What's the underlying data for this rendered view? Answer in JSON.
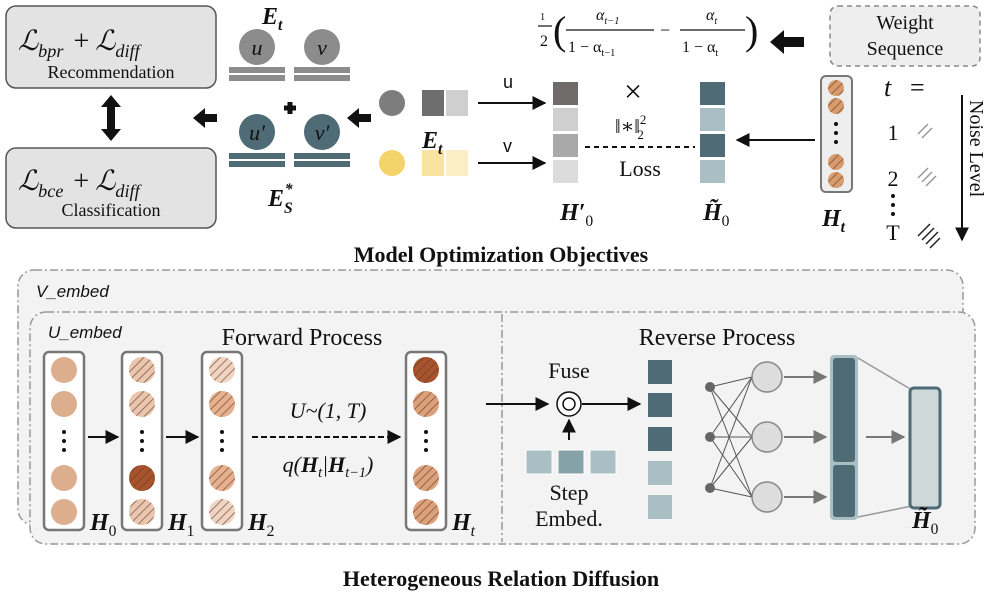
{
  "objectives": {
    "recommendation": {
      "loss_a": {
        "symbol": "ℒ",
        "subscript": "bpr"
      },
      "plus": "+",
      "loss_b": {
        "symbol": "ℒ",
        "subscript": "diff"
      },
      "label": "Recommendation"
    },
    "classification": {
      "loss_a": {
        "symbol": "ℒ",
        "subscript": "bce"
      },
      "plus": "+",
      "loss_b": {
        "symbol": "ℒ",
        "subscript": "diff"
      },
      "label": "Classification"
    },
    "embeddings": {
      "e_t": {
        "symbol": "E",
        "subscript": "t"
      },
      "u": "u",
      "v": "v",
      "u_prime": "u′",
      "v_prime": "v′",
      "e_s": {
        "symbol": "E",
        "subscript": "S",
        "superscript": "*"
      }
    },
    "inputs": {
      "e_t": {
        "symbol": "E",
        "subscript": "t"
      },
      "u_arrow": "u",
      "v_arrow": "v"
    },
    "loss": {
      "times": "×",
      "norm": "‖∗‖",
      "norm_superscript": "2",
      "norm_subscript": "2",
      "label": "Loss"
    },
    "h_prime_0": {
      "symbol": "H′",
      "subscript": "0"
    },
    "h_tilde_0": {
      "symbol": "H̃",
      "subscript": "0"
    },
    "weight_formula": {
      "half_numerator": "1",
      "half_denominator": "2",
      "open": "(",
      "close": ")",
      "minus": "−",
      "term_a": {
        "numerator": {
          "symbol": "α",
          "subscript": "t−1"
        },
        "denominator": {
          "symbol": "1 − α",
          "subscript": "t−1"
        }
      },
      "term_b": {
        "numerator": {
          "symbol": "α",
          "subscript": "t"
        },
        "denominator": {
          "symbol": "1 − α",
          "subscript": "t"
        }
      }
    },
    "weight_sequence": [
      "Weight",
      "Sequence"
    ],
    "noise": {
      "t": "t",
      "equals": "=",
      "steps": [
        "1",
        "2",
        "T"
      ],
      "label": "Noise Level"
    },
    "h_t": {
      "symbol": "H",
      "subscript": "t"
    },
    "title": "Model Optimization Objectives"
  },
  "diffusion": {
    "v_embed": "V_embed",
    "u_embed": "U_embed",
    "forward": {
      "title": "Forward Process",
      "columns": [
        {
          "symbol": "H",
          "subscript": "0"
        },
        {
          "symbol": "H",
          "subscript": "1"
        },
        {
          "symbol": "H",
          "subscript": "2"
        },
        {
          "symbol": "H",
          "subscript": "t"
        }
      ],
      "sampling": "U~(1, T)",
      "transition": {
        "prefix": "q(",
        "a": {
          "symbol": "H",
          "subscript": "t"
        },
        "bar": "|",
        "b": {
          "symbol": "H",
          "subscript": "t−1"
        },
        "suffix": ")"
      }
    },
    "reverse": {
      "title": "Reverse Process",
      "fuse": "Fuse",
      "step_embed": [
        "Step",
        "Embed."
      ],
      "output": {
        "symbol": "H̃",
        "subscript": "0"
      }
    },
    "title": "Heterogeneous Relation Diffusion"
  }
}
